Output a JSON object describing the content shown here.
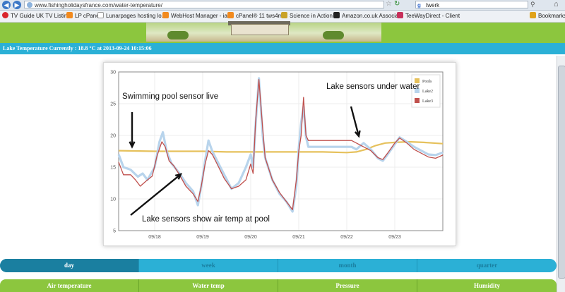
{
  "browser": {
    "url": "www.fishingholidaysfrance.com/water-temperature/",
    "search_value": "twerk",
    "search_engine_icon": "google-icon",
    "bookmarks": [
      {
        "label": "TV Guide UK TV Listin...",
        "icon": "heart-icon",
        "color": "#d9262c"
      },
      {
        "label": "LP cPanel",
        "icon": "cpanel-icon",
        "color": "#f28a1e"
      },
      {
        "label": "Lunarpages hosting lo...",
        "icon": "page-icon",
        "color": "#dfe6ee"
      },
      {
        "label": "WebHost Manager - ia...",
        "icon": "cpanel-icon",
        "color": "#f28a1e"
      },
      {
        "label": "cPanel® 11 tws4me",
        "icon": "cpanel-icon",
        "color": "#f28a1e"
      },
      {
        "label": "Science in Action",
        "icon": "folder-icon",
        "color": "#c9a227"
      },
      {
        "label": "Amazon.co.uk Associa...",
        "icon": "amazon-icon",
        "color": "#222222"
      },
      {
        "label": "TeeWayDirect - Client",
        "icon": "tag-icon",
        "color": "#c7305a"
      },
      {
        "label": "Bookmarks",
        "icon": "star-icon",
        "color": "#e0a21b"
      }
    ]
  },
  "status": {
    "text": "Lake Temperature Currently : 18.8 °C at 2013-09-24 10:15:06"
  },
  "chart_data": {
    "type": "line",
    "ylim": [
      5,
      30
    ],
    "yticks": [
      5,
      10,
      15,
      20,
      25,
      30
    ],
    "xlim": [
      17.25,
      24.0
    ],
    "x_ticks": [
      {
        "x": 18,
        "label": "09/18"
      },
      {
        "x": 19,
        "label": "09/19"
      },
      {
        "x": 20,
        "label": "09/20"
      },
      {
        "x": 21,
        "label": "09/21"
      },
      {
        "x": 22,
        "label": "09/22"
      },
      {
        "x": 23,
        "label": "09/23"
      }
    ],
    "grid": true,
    "legend_position": "top-right",
    "series": [
      {
        "name": "Pools",
        "color": "#e6c15c",
        "points": [
          [
            17.25,
            17.6
          ],
          [
            18.0,
            17.5
          ],
          [
            18.5,
            17.5
          ],
          [
            19.0,
            17.5
          ],
          [
            19.5,
            17.4
          ],
          [
            20.0,
            17.4
          ],
          [
            20.5,
            17.4
          ],
          [
            21.0,
            17.4
          ],
          [
            21.5,
            17.4
          ],
          [
            22.0,
            17.3
          ],
          [
            22.2,
            17.4
          ],
          [
            22.4,
            17.8
          ],
          [
            22.6,
            18.4
          ],
          [
            22.8,
            18.8
          ],
          [
            23.0,
            18.9
          ],
          [
            23.3,
            19.0
          ],
          [
            23.6,
            18.9
          ],
          [
            24.0,
            18.7
          ]
        ]
      },
      {
        "name": "Lake2",
        "color": "#b8d4ec",
        "points": [
          [
            17.25,
            17.0
          ],
          [
            17.35,
            15.0
          ],
          [
            17.5,
            14.6
          ],
          [
            17.65,
            13.5
          ],
          [
            17.75,
            14.0
          ],
          [
            17.85,
            13.0
          ],
          [
            18.0,
            15.0
          ],
          [
            18.1,
            19.0
          ],
          [
            18.17,
            20.5
          ],
          [
            18.25,
            17.5
          ],
          [
            18.35,
            15.6
          ],
          [
            18.5,
            14.2
          ],
          [
            18.65,
            12.5
          ],
          [
            18.8,
            11.2
          ],
          [
            18.9,
            9.0
          ],
          [
            18.97,
            12.0
          ],
          [
            19.05,
            16.0
          ],
          [
            19.12,
            19.2
          ],
          [
            19.2,
            17.5
          ],
          [
            19.3,
            16.0
          ],
          [
            19.45,
            13.8
          ],
          [
            19.6,
            11.6
          ],
          [
            19.75,
            12.5
          ],
          [
            19.9,
            15.0
          ],
          [
            20.0,
            17.0
          ],
          [
            20.05,
            15.0
          ],
          [
            20.1,
            21.5
          ],
          [
            20.17,
            29.0
          ],
          [
            20.25,
            20.0
          ],
          [
            20.3,
            16.5
          ],
          [
            20.45,
            13.0
          ],
          [
            20.6,
            10.8
          ],
          [
            20.75,
            9.5
          ],
          [
            20.87,
            8.0
          ],
          [
            20.95,
            12.0
          ],
          [
            21.0,
            18.0
          ],
          [
            21.05,
            22.0
          ],
          [
            21.1,
            24.5
          ],
          [
            21.15,
            19.8
          ],
          [
            21.2,
            18.2
          ],
          [
            21.5,
            18.2
          ],
          [
            21.8,
            18.2
          ],
          [
            22.0,
            18.2
          ],
          [
            22.1,
            18.2
          ],
          [
            22.2,
            17.8
          ],
          [
            22.35,
            18.8
          ],
          [
            22.5,
            17.8
          ],
          [
            22.65,
            16.4
          ],
          [
            22.75,
            16.0
          ],
          [
            22.85,
            17.0
          ],
          [
            23.0,
            18.6
          ],
          [
            23.1,
            19.7
          ],
          [
            23.25,
            19.0
          ],
          [
            23.4,
            18.2
          ],
          [
            23.55,
            17.6
          ],
          [
            23.7,
            17.0
          ],
          [
            23.85,
            16.9
          ],
          [
            24.0,
            17.3
          ]
        ]
      },
      {
        "name": "Lake3",
        "color": "#c0504d",
        "points": [
          [
            17.25,
            15.8
          ],
          [
            17.35,
            13.8
          ],
          [
            17.5,
            13.8
          ],
          [
            17.6,
            13.0
          ],
          [
            17.7,
            12.0
          ],
          [
            17.82,
            12.8
          ],
          [
            17.95,
            13.6
          ],
          [
            18.05,
            16.8
          ],
          [
            18.15,
            19.0
          ],
          [
            18.22,
            18.2
          ],
          [
            18.3,
            16.0
          ],
          [
            18.4,
            15.2
          ],
          [
            18.5,
            14.0
          ],
          [
            18.65,
            12.0
          ],
          [
            18.8,
            10.8
          ],
          [
            18.9,
            9.6
          ],
          [
            18.97,
            12.0
          ],
          [
            19.05,
            15.5
          ],
          [
            19.12,
            17.6
          ],
          [
            19.2,
            17.0
          ],
          [
            19.3,
            15.5
          ],
          [
            19.45,
            13.2
          ],
          [
            19.6,
            11.6
          ],
          [
            19.75,
            12.0
          ],
          [
            19.9,
            13.0
          ],
          [
            20.0,
            15.5
          ],
          [
            20.05,
            14.0
          ],
          [
            20.1,
            22.0
          ],
          [
            20.17,
            28.8
          ],
          [
            20.25,
            21.0
          ],
          [
            20.3,
            16.5
          ],
          [
            20.45,
            13.0
          ],
          [
            20.6,
            11.0
          ],
          [
            20.75,
            9.5
          ],
          [
            20.87,
            8.3
          ],
          [
            20.95,
            13.0
          ],
          [
            21.0,
            17.5
          ],
          [
            21.05,
            20.0
          ],
          [
            21.1,
            26.0
          ],
          [
            21.15,
            20.0
          ],
          [
            21.2,
            19.2
          ],
          [
            21.5,
            19.2
          ],
          [
            21.8,
            19.2
          ],
          [
            22.0,
            19.2
          ],
          [
            22.1,
            19.2
          ],
          [
            22.2,
            18.8
          ],
          [
            22.35,
            18.2
          ],
          [
            22.5,
            17.6
          ],
          [
            22.65,
            16.5
          ],
          [
            22.75,
            16.2
          ],
          [
            22.85,
            17.2
          ],
          [
            23.0,
            18.8
          ],
          [
            23.1,
            19.6
          ],
          [
            23.25,
            18.8
          ],
          [
            23.4,
            17.8
          ],
          [
            23.55,
            17.2
          ],
          [
            23.7,
            16.6
          ],
          [
            23.85,
            16.4
          ],
          [
            24.0,
            16.9
          ]
        ]
      }
    ],
    "annotations": [
      {
        "text": "Swimming pool sensor live"
      },
      {
        "text": "Lake sensors under water"
      },
      {
        "text": "Lake sensors show air temp at pool"
      }
    ]
  },
  "period_tabs": [
    {
      "label": "day",
      "active": true
    },
    {
      "label": "week",
      "active": false
    },
    {
      "label": "month",
      "active": false
    },
    {
      "label": "quarter",
      "active": false
    }
  ],
  "measure_tabs": [
    {
      "label": "Air temperature"
    },
    {
      "label": "Water temp"
    },
    {
      "label": "Pressure"
    },
    {
      "label": "Humidity"
    }
  ]
}
